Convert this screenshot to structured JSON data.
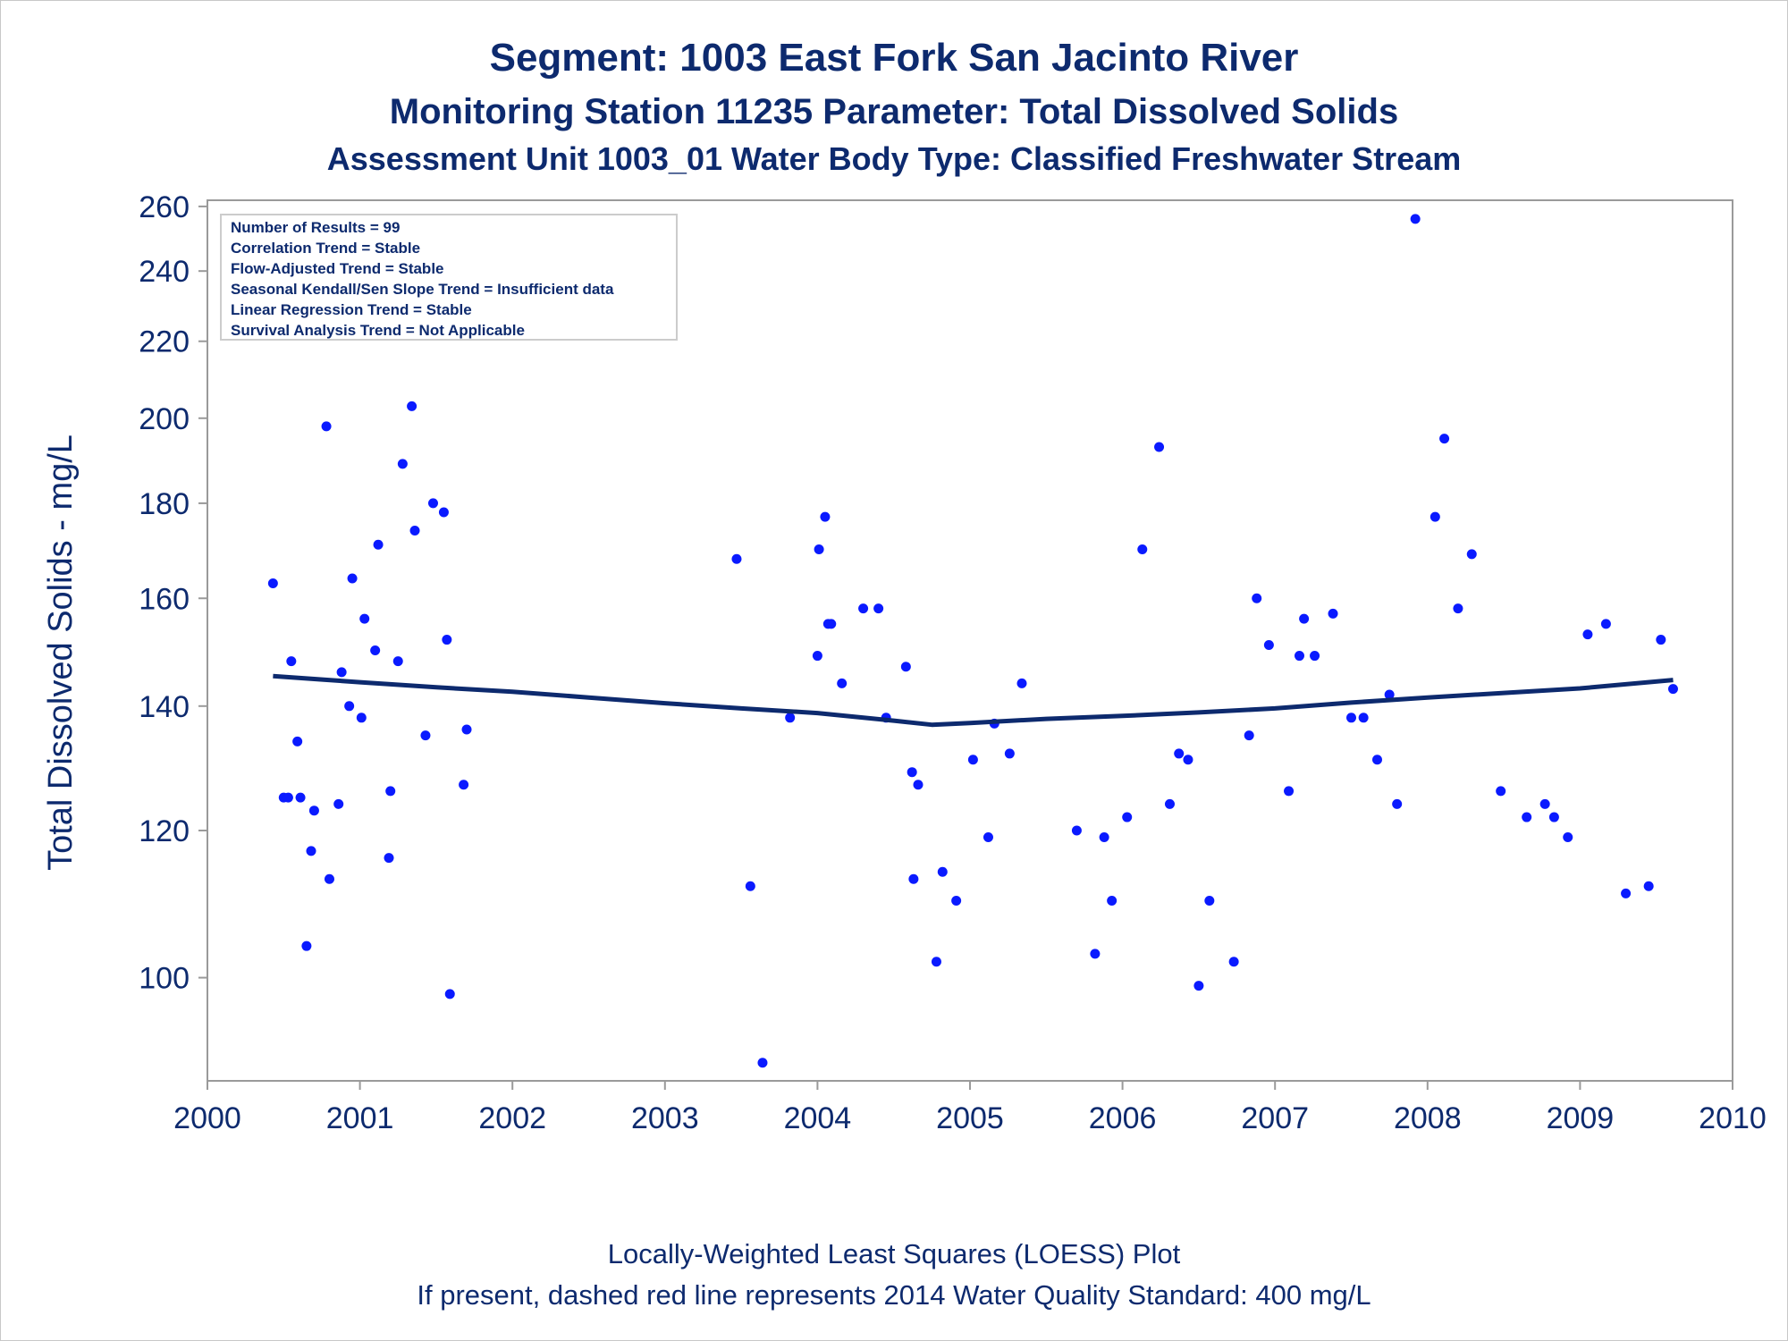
{
  "titles": {
    "line1": "Segment: 1003  East Fork San Jacinto River",
    "line2": "Monitoring Station 11235 Parameter: Total Dissolved Solids",
    "line3": "Assessment Unit 1003_01   Water Body Type: Classified Freshwater Stream"
  },
  "stats_box": [
    "Number of Results = 99",
    "Correlation Trend = Stable",
    "Flow-Adjusted Trend = Stable",
    "Seasonal Kendall/Sen Slope Trend = Insufficient data",
    "Linear Regression Trend = Stable",
    "Survival Analysis Trend = Not Applicable"
  ],
  "footnotes": {
    "line1": "Locally-Weighted Least Squares (LOESS) Plot",
    "line2": "If present, dashed red line represents 2014 Water Quality Standard: 400   mg/L"
  },
  "colors": {
    "points": "#0a1aff",
    "loess": "#0d2a6e",
    "text": "#0d2a6e",
    "axis": "#9a9a9a"
  },
  "chart_data": {
    "type": "scatter",
    "ylabel": "Total Dissolved Solids - mg/L",
    "xlabel": "",
    "y_scale": "log",
    "xlim": [
      2000,
      2010
    ],
    "ylim": [
      88,
      262
    ],
    "x_ticks": [
      2000,
      2001,
      2002,
      2003,
      2004,
      2005,
      2006,
      2007,
      2008,
      2009,
      2010
    ],
    "y_ticks": [
      100,
      120,
      140,
      160,
      180,
      200,
      220,
      240,
      260
    ],
    "series": [
      {
        "type": "scatter",
        "points": [
          [
            2000.43,
            163
          ],
          [
            2000.5,
            125
          ],
          [
            2000.53,
            125
          ],
          [
            2000.55,
            148
          ],
          [
            2000.59,
            134
          ],
          [
            2000.61,
            125
          ],
          [
            2000.65,
            104
          ],
          [
            2000.68,
            117
          ],
          [
            2000.7,
            123
          ],
          [
            2000.78,
            198
          ],
          [
            2000.8,
            113
          ],
          [
            2000.86,
            124
          ],
          [
            2000.88,
            146
          ],
          [
            2000.93,
            140
          ],
          [
            2000.95,
            164
          ],
          [
            2001.01,
            138
          ],
          [
            2001.03,
            156
          ],
          [
            2001.1,
            150
          ],
          [
            2001.12,
            171
          ],
          [
            2001.19,
            116
          ],
          [
            2001.2,
            126
          ],
          [
            2001.25,
            148
          ],
          [
            2001.28,
            189
          ],
          [
            2001.34,
            203
          ],
          [
            2001.36,
            174
          ],
          [
            2001.43,
            135
          ],
          [
            2001.48,
            180
          ],
          [
            2001.55,
            178
          ],
          [
            2001.57,
            152
          ],
          [
            2001.59,
            98
          ],
          [
            2001.68,
            127
          ],
          [
            2001.7,
            136
          ],
          [
            2003.47,
            168
          ],
          [
            2003.56,
            112
          ],
          [
            2003.64,
            90
          ],
          [
            2003.82,
            138
          ],
          [
            2004.0,
            149
          ],
          [
            2004.01,
            170
          ],
          [
            2004.05,
            177
          ],
          [
            2004.07,
            155
          ],
          [
            2004.09,
            155
          ],
          [
            2004.16,
            144
          ],
          [
            2004.3,
            158
          ],
          [
            2004.4,
            158
          ],
          [
            2004.45,
            138
          ],
          [
            2004.58,
            147
          ],
          [
            2004.62,
            129
          ],
          [
            2004.63,
            113
          ],
          [
            2004.66,
            127
          ],
          [
            2004.78,
            102
          ],
          [
            2004.82,
            114
          ],
          [
            2004.91,
            110
          ],
          [
            2005.02,
            131
          ],
          [
            2005.12,
            119
          ],
          [
            2005.16,
            137
          ],
          [
            2005.26,
            132
          ],
          [
            2005.34,
            144
          ],
          [
            2005.7,
            120
          ],
          [
            2005.82,
            103
          ],
          [
            2005.88,
            119
          ],
          [
            2005.93,
            110
          ],
          [
            2006.03,
            122
          ],
          [
            2006.13,
            170
          ],
          [
            2006.24,
            193
          ],
          [
            2006.31,
            124
          ],
          [
            2006.37,
            132
          ],
          [
            2006.43,
            131
          ],
          [
            2006.5,
            99
          ],
          [
            2006.57,
            110
          ],
          [
            2006.73,
            102
          ],
          [
            2006.83,
            135
          ],
          [
            2006.88,
            160
          ],
          [
            2006.96,
            151
          ],
          [
            2007.09,
            126
          ],
          [
            2007.16,
            149
          ],
          [
            2007.19,
            156
          ],
          [
            2007.26,
            149
          ],
          [
            2007.38,
            157
          ],
          [
            2007.5,
            138
          ],
          [
            2007.58,
            138
          ],
          [
            2007.67,
            131
          ],
          [
            2007.75,
            142
          ],
          [
            2007.8,
            124
          ],
          [
            2007.92,
            256
          ],
          [
            2008.05,
            177
          ],
          [
            2008.11,
            195
          ],
          [
            2008.2,
            158
          ],
          [
            2008.29,
            169
          ],
          [
            2008.48,
            126
          ],
          [
            2008.65,
            122
          ],
          [
            2008.77,
            124
          ],
          [
            2008.83,
            122
          ],
          [
            2008.92,
            119
          ],
          [
            2009.05,
            153
          ],
          [
            2009.17,
            155
          ],
          [
            2009.3,
            111
          ],
          [
            2009.45,
            112
          ],
          [
            2009.53,
            152
          ],
          [
            2009.61,
            143
          ]
        ]
      },
      {
        "type": "line",
        "name": "",
        "points": [
          [
            2000.43,
            145.3
          ],
          [
            2001.0,
            144.2
          ],
          [
            2001.5,
            143.3
          ],
          [
            2002.0,
            142.5
          ],
          [
            2002.5,
            141.5
          ],
          [
            2003.0,
            140.5
          ],
          [
            2003.5,
            139.6
          ],
          [
            2004.0,
            138.8
          ],
          [
            2004.5,
            137.5
          ],
          [
            2004.75,
            136.8
          ],
          [
            2005.0,
            137.1
          ],
          [
            2005.5,
            137.8
          ],
          [
            2006.0,
            138.3
          ],
          [
            2006.5,
            138.9
          ],
          [
            2007.0,
            139.6
          ],
          [
            2007.5,
            140.6
          ],
          [
            2008.0,
            141.5
          ],
          [
            2008.5,
            142.3
          ],
          [
            2009.0,
            143.1
          ],
          [
            2009.61,
            144.6
          ]
        ]
      }
    ]
  }
}
